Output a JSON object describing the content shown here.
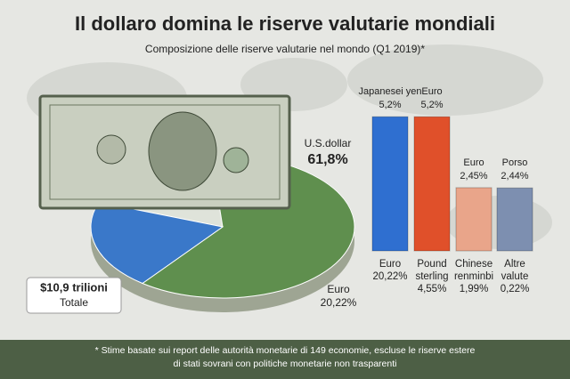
{
  "chart_data": [
    {
      "type": "pie",
      "title": "Il dollaro domina le riserve valutarie mondiali",
      "subtitle": "Composizione delle riserve valutarie nel mondo (Q1 2019)*",
      "categories": [
        "U.S.dollar",
        "Euro"
      ],
      "values": [
        61.8,
        20.22
      ],
      "value_labels": [
        "61,8%",
        "20,22%"
      ],
      "colors": [
        "#5f8f4e",
        "#3a78c9"
      ],
      "annotations": [
        "$10,9 trilioni",
        "Totale"
      ],
      "footnote": [
        "* Stime basate sui report delle autorità monetarie di 149 economie, escluse le riserve estere",
        "di stati sovrani con politiche monetarie non trasparenti"
      ]
    },
    {
      "type": "bar",
      "categories": [
        "Japanesei yen",
        "Euro",
        "Euro",
        "Porso"
      ],
      "values": [
        5.2,
        5.2,
        2.45,
        2.44
      ],
      "value_labels": [
        "5,2%",
        "5,2%",
        "2,45%",
        "2,44%"
      ],
      "colors": [
        "#2f6fd0",
        "#e0502a",
        "#e9a58a",
        "#7d8fb0"
      ],
      "annotations": [
        [
          "Euro",
          "20,22%"
        ],
        [
          "Pound",
          "sterling",
          "4,55%"
        ],
        [
          "Chinese",
          "renminbi",
          "1,99%"
        ],
        [
          "Altre",
          "valute",
          "0,22%"
        ]
      ]
    }
  ]
}
